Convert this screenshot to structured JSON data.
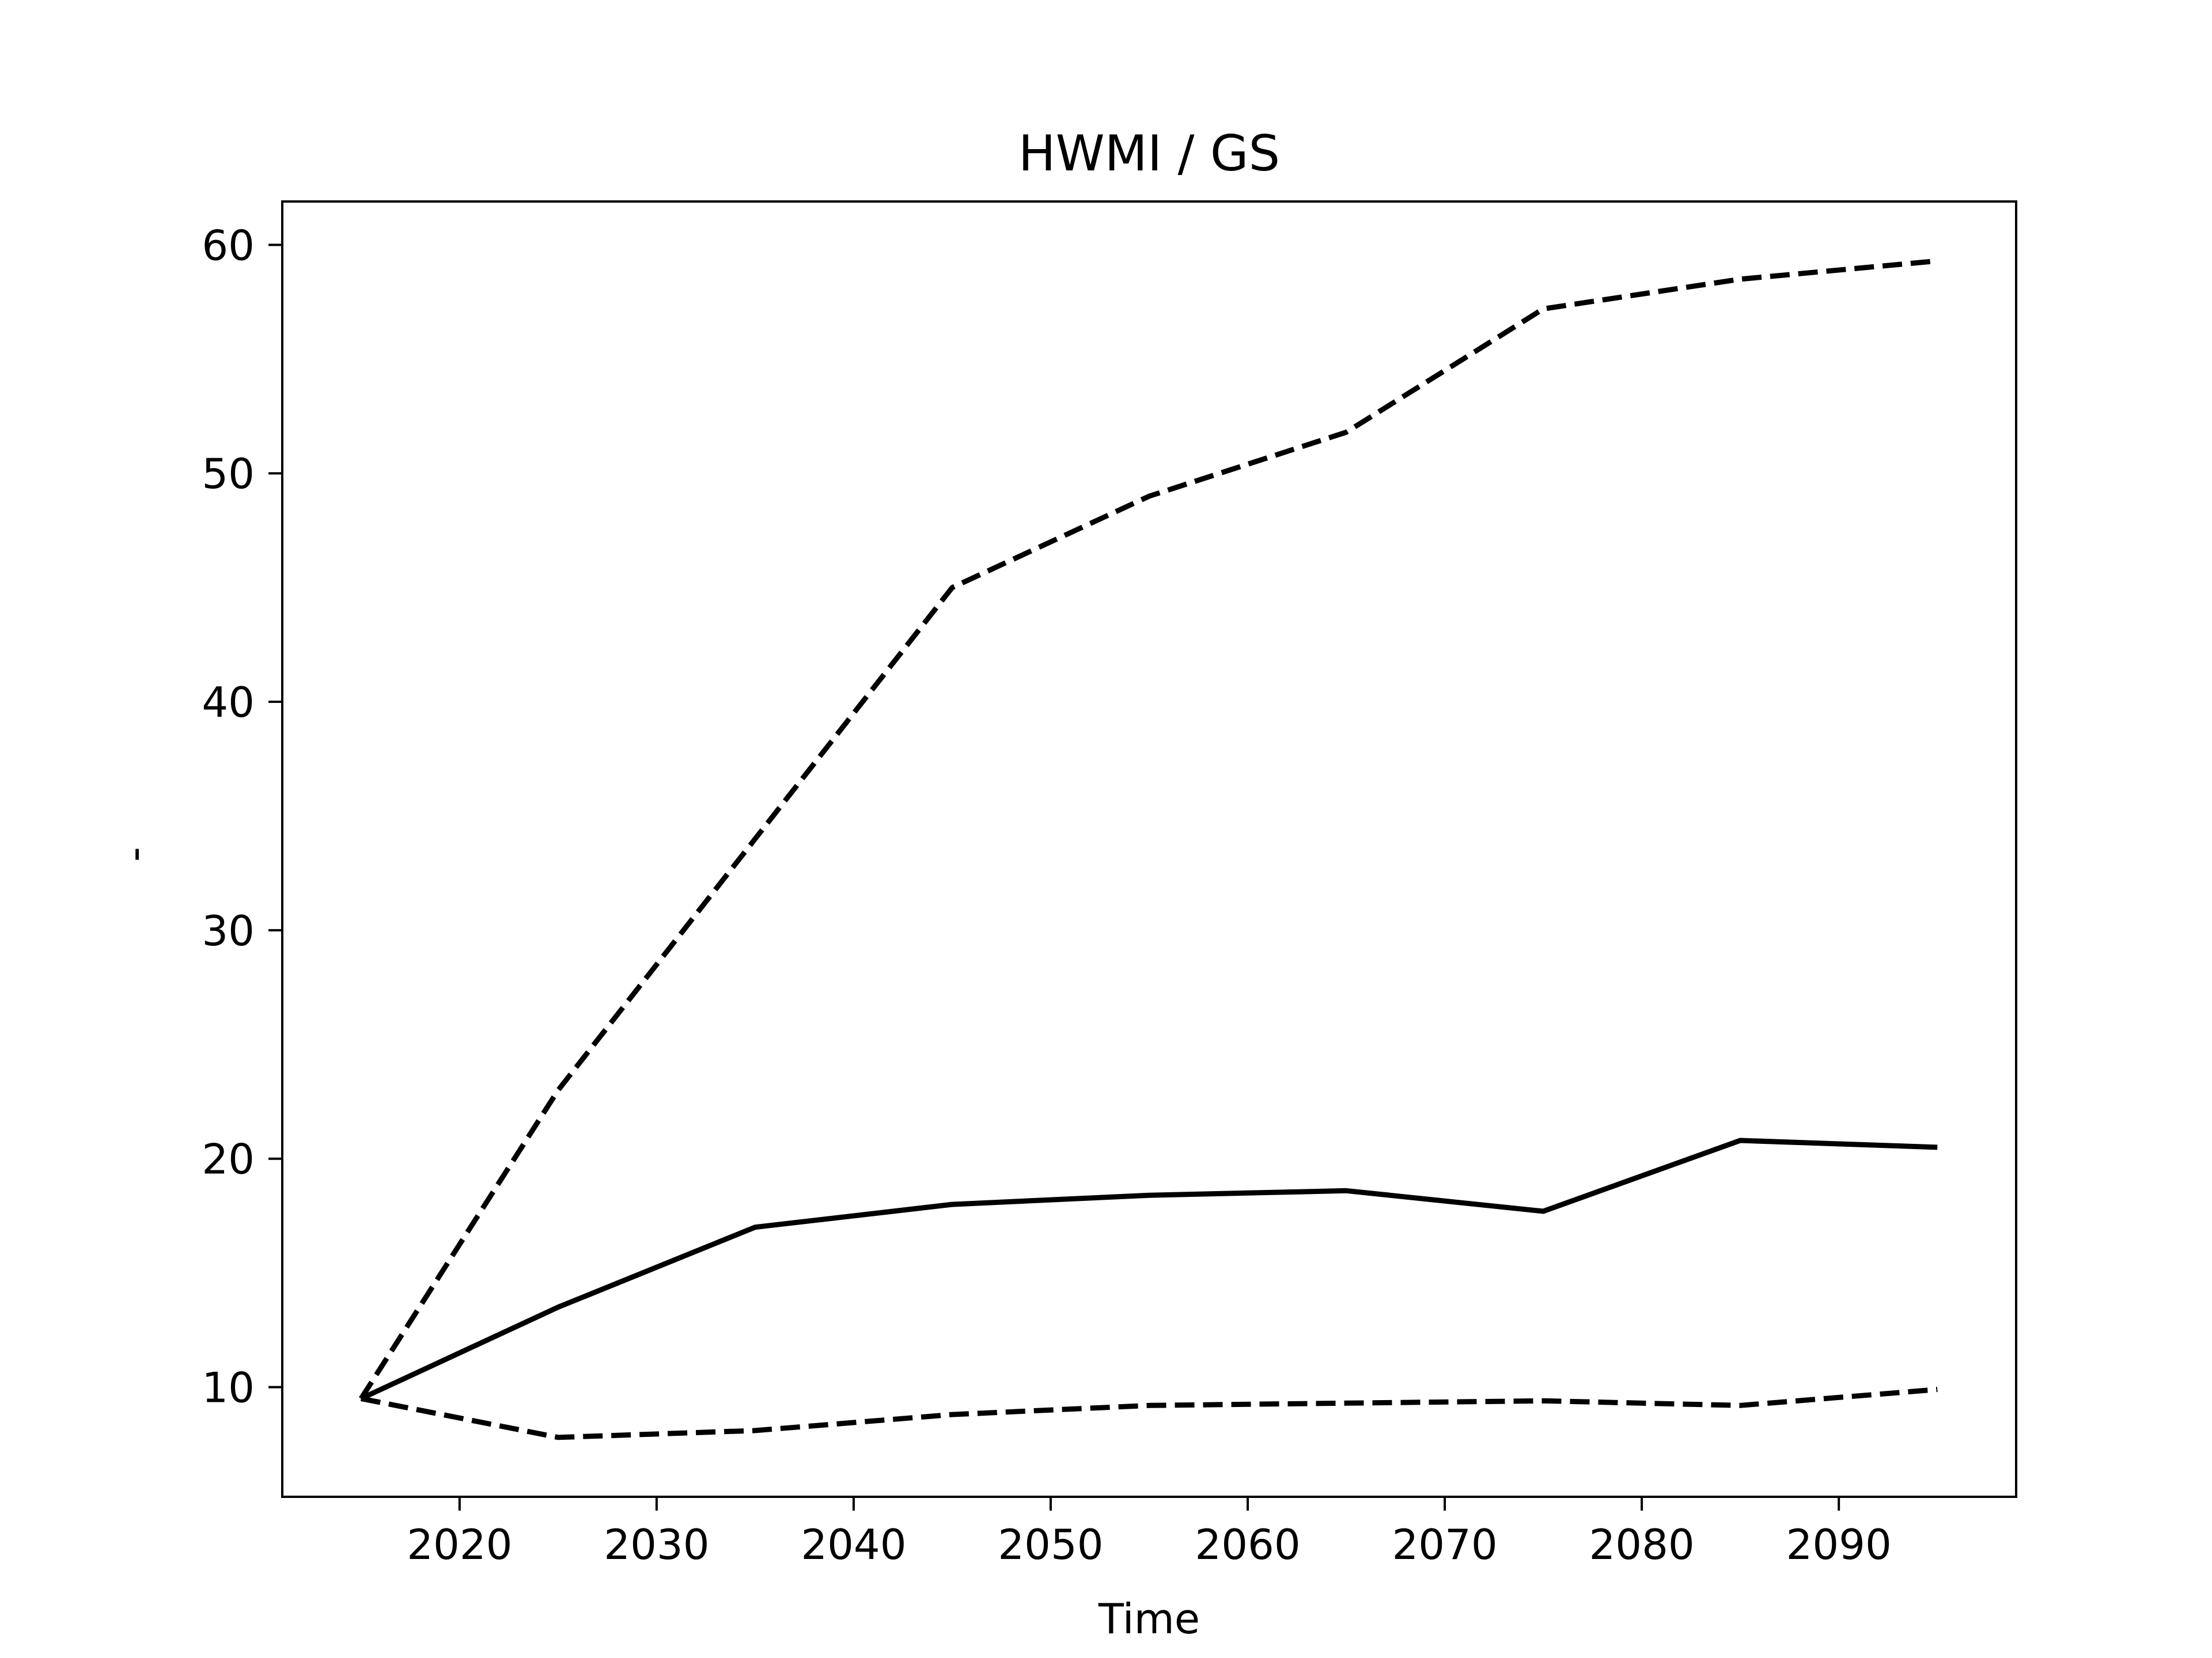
{
  "chart_data": {
    "type": "line",
    "title": "HWMI / GS",
    "xlabel": "Time",
    "ylabel": "-",
    "x": [
      2015,
      2025,
      2035,
      2045,
      2055,
      2065,
      2075,
      2085,
      2095
    ],
    "series": [
      {
        "style": "solid",
        "values": [
          9.5,
          13.5,
          17.0,
          18.0,
          18.4,
          18.6,
          17.7,
          20.8,
          20.5
        ]
      },
      {
        "style": "dashed",
        "values": [
          9.5,
          23.0,
          34.0,
          45.0,
          49.0,
          51.8,
          57.2,
          58.5,
          59.3
        ]
      },
      {
        "style": "dashed",
        "values": [
          9.5,
          7.8,
          8.1,
          8.8,
          9.2,
          9.3,
          9.4,
          9.2,
          9.9
        ]
      }
    ],
    "xlim": [
      2011,
      2099
    ],
    "ylim": [
      5.2,
      61.9
    ],
    "xticks": [
      "2020",
      "2030",
      "2040",
      "2050",
      "2060",
      "2070",
      "2080",
      "2090"
    ],
    "yticks": [
      "10",
      "20",
      "30",
      "40",
      "50",
      "60"
    ],
    "grid": false,
    "line_color": "#000000"
  }
}
